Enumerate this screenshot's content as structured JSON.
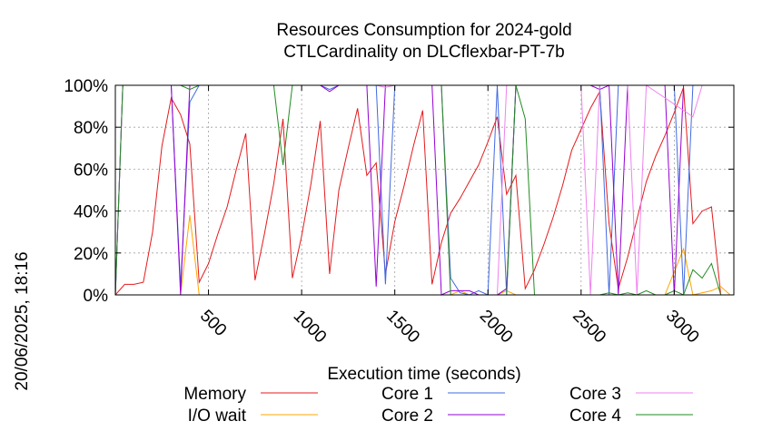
{
  "chart_data": {
    "type": "line",
    "title": [
      "Resources Consumption for 2024-gold",
      "CTLCardinality on DLCflexbar-PT-7b"
    ],
    "xlabel": "Execution time (seconds)",
    "ylabel": "",
    "side_label": "20/06/2025, 18:16",
    "xlim": [
      0,
      3320
    ],
    "ylim": [
      0,
      100
    ],
    "x_ticks": [
      500,
      1000,
      1500,
      2000,
      2500,
      3000
    ],
    "y_ticks": [
      0,
      20,
      40,
      60,
      80,
      100
    ],
    "y_tick_labels": [
      "0%",
      "20%",
      "40%",
      "60%",
      "80%",
      "100%"
    ],
    "grid": true,
    "legend": "bottom",
    "series": [
      {
        "name": "Memory",
        "color": "#e41a1c",
        "points": [
          [
            0,
            0
          ],
          [
            50,
            5
          ],
          [
            100,
            5
          ],
          [
            150,
            6
          ],
          [
            200,
            30
          ],
          [
            250,
            71
          ],
          [
            300,
            94
          ],
          [
            350,
            86
          ],
          [
            400,
            72
          ],
          [
            450,
            6
          ],
          [
            500,
            15
          ],
          [
            550,
            29
          ],
          [
            600,
            42
          ],
          [
            650,
            60
          ],
          [
            700,
            77
          ],
          [
            750,
            7
          ],
          [
            800,
            29
          ],
          [
            850,
            53
          ],
          [
            900,
            84
          ],
          [
            950,
            8
          ],
          [
            1000,
            28
          ],
          [
            1050,
            53
          ],
          [
            1100,
            83
          ],
          [
            1150,
            10
          ],
          [
            1200,
            50
          ],
          [
            1250,
            70
          ],
          [
            1300,
            89
          ],
          [
            1350,
            57
          ],
          [
            1400,
            63
          ],
          [
            1450,
            10
          ],
          [
            1500,
            35
          ],
          [
            1550,
            52
          ],
          [
            1600,
            71
          ],
          [
            1650,
            88
          ],
          [
            1700,
            5
          ],
          [
            1750,
            25
          ],
          [
            1800,
            39
          ],
          [
            1850,
            46
          ],
          [
            1900,
            54
          ],
          [
            1950,
            62
          ],
          [
            2000,
            73
          ],
          [
            2050,
            85
          ],
          [
            2100,
            48
          ],
          [
            2150,
            57
          ],
          [
            2200,
            3
          ],
          [
            2250,
            12
          ],
          [
            2300,
            24
          ],
          [
            2350,
            37
          ],
          [
            2400,
            52
          ],
          [
            2450,
            69
          ],
          [
            2500,
            79
          ],
          [
            2550,
            89
          ],
          [
            2600,
            97
          ],
          [
            2650,
            34
          ],
          [
            2700,
            3
          ],
          [
            2750,
            18
          ],
          [
            2800,
            36
          ],
          [
            2850,
            54
          ],
          [
            2900,
            66
          ],
          [
            2950,
            76
          ],
          [
            3000,
            87
          ],
          [
            3050,
            99
          ],
          [
            3100,
            34
          ],
          [
            3150,
            40
          ],
          [
            3200,
            42
          ],
          [
            3250,
            0
          ]
        ]
      },
      {
        "name": "I/O wait",
        "color": "#ffa500",
        "points": [
          [
            0,
            0
          ],
          [
            350,
            0
          ],
          [
            400,
            38
          ],
          [
            450,
            0
          ],
          [
            1800,
            0
          ],
          [
            1850,
            2
          ],
          [
            1900,
            0
          ],
          [
            2050,
            0
          ],
          [
            2100,
            2
          ],
          [
            2150,
            0
          ],
          [
            2600,
            0
          ],
          [
            2650,
            0
          ],
          [
            2700,
            0
          ],
          [
            2950,
            0
          ],
          [
            3050,
            22
          ],
          [
            3100,
            0
          ],
          [
            3200,
            2
          ],
          [
            3250,
            4
          ],
          [
            3300,
            0
          ]
        ]
      },
      {
        "name": "Core 1",
        "color": "#4169e1",
        "points": [
          [
            0,
            0
          ],
          [
            40,
            100
          ],
          [
            300,
            100
          ],
          [
            350,
            4
          ],
          [
            400,
            92
          ],
          [
            450,
            100
          ],
          [
            1050,
            100
          ],
          [
            1100,
            100
          ],
          [
            1150,
            98
          ],
          [
            1200,
            100
          ],
          [
            1400,
            100
          ],
          [
            1450,
            5
          ],
          [
            1500,
            100
          ],
          [
            1750,
            100
          ],
          [
            1800,
            8
          ],
          [
            1850,
            1
          ],
          [
            1900,
            0
          ],
          [
            1950,
            2
          ],
          [
            2000,
            0
          ],
          [
            2050,
            100
          ],
          [
            2100,
            0
          ],
          [
            2150,
            100
          ],
          [
            2600,
            100
          ],
          [
            2650,
            0
          ],
          [
            2700,
            100
          ],
          [
            3000,
            100
          ],
          [
            3050,
            0
          ],
          [
            3100,
            100
          ],
          [
            3320,
            100
          ]
        ]
      },
      {
        "name": "Core 2",
        "color": "#9400d3",
        "points": [
          [
            0,
            0
          ],
          [
            40,
            100
          ],
          [
            300,
            100
          ],
          [
            350,
            0
          ],
          [
            400,
            100
          ],
          [
            1100,
            100
          ],
          [
            1150,
            97
          ],
          [
            1200,
            100
          ],
          [
            1350,
            100
          ],
          [
            1400,
            4
          ],
          [
            1450,
            100
          ],
          [
            1700,
            100
          ],
          [
            1750,
            0
          ],
          [
            1800,
            2
          ],
          [
            1900,
            2
          ],
          [
            1950,
            0
          ],
          [
            2050,
            0
          ],
          [
            2100,
            3
          ],
          [
            2150,
            100
          ],
          [
            2550,
            100
          ],
          [
            2600,
            98
          ],
          [
            2650,
            100
          ],
          [
            2700,
            0
          ],
          [
            2750,
            100
          ],
          [
            2950,
            100
          ],
          [
            3000,
            0
          ],
          [
            3050,
            100
          ],
          [
            3320,
            100
          ]
        ]
      },
      {
        "name": "Core 3",
        "color": "#ee82ee",
        "points": [
          [
            0,
            0
          ],
          [
            40,
            100
          ],
          [
            1400,
            100
          ],
          [
            1450,
            99
          ],
          [
            1500,
            100
          ],
          [
            1750,
            100
          ],
          [
            1800,
            0
          ],
          [
            2050,
            0
          ],
          [
            2100,
            100
          ],
          [
            2500,
            100
          ],
          [
            2550,
            0
          ],
          [
            2600,
            100
          ],
          [
            2750,
            100
          ],
          [
            2800,
            0
          ],
          [
            2850,
            100
          ],
          [
            3100,
            85
          ],
          [
            3150,
            100
          ],
          [
            3320,
            100
          ]
        ]
      },
      {
        "name": "Core 4",
        "color": "#228b22",
        "points": [
          [
            0,
            0
          ],
          [
            40,
            100
          ],
          [
            350,
            100
          ],
          [
            400,
            98
          ],
          [
            450,
            100
          ],
          [
            850,
            100
          ],
          [
            900,
            62
          ],
          [
            950,
            100
          ],
          [
            1750,
            100
          ],
          [
            1800,
            0
          ],
          [
            2100,
            0
          ],
          [
            2150,
            100
          ],
          [
            2200,
            84
          ],
          [
            2250,
            0
          ],
          [
            2500,
            0
          ],
          [
            2550,
            0
          ],
          [
            2600,
            0
          ],
          [
            2650,
            1
          ],
          [
            2700,
            0
          ],
          [
            2750,
            1
          ],
          [
            2800,
            0
          ],
          [
            2850,
            2
          ],
          [
            2900,
            0
          ],
          [
            2950,
            0
          ],
          [
            3000,
            2
          ],
          [
            3050,
            0
          ],
          [
            3100,
            12
          ],
          [
            3150,
            8
          ],
          [
            3200,
            15
          ],
          [
            3250,
            0
          ]
        ]
      }
    ]
  }
}
